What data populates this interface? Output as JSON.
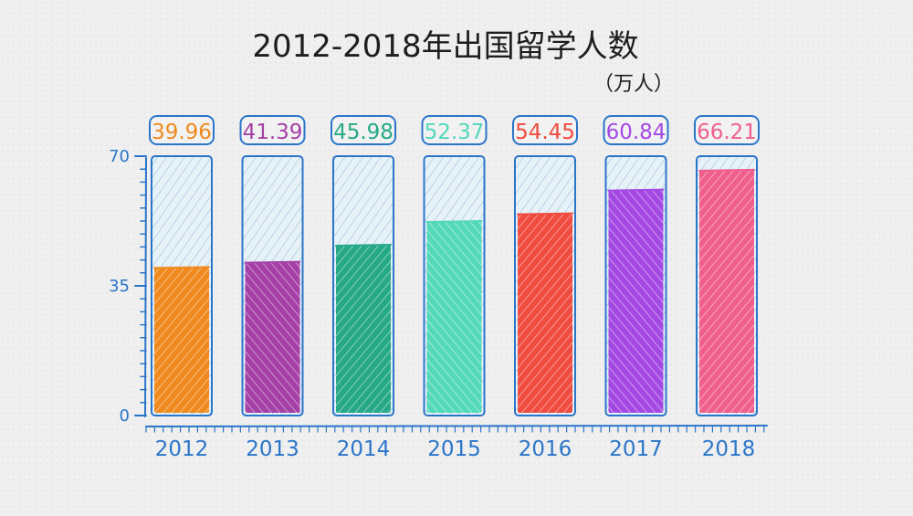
{
  "chart_data": {
    "type": "bar",
    "title": "2012-2018年出国留学人数",
    "unit_label": "（万人）",
    "categories": [
      "2012",
      "2013",
      "2014",
      "2015",
      "2016",
      "2017",
      "2018"
    ],
    "values": [
      39.96,
      41.39,
      45.98,
      52.37,
      54.45,
      60.84,
      66.21
    ],
    "value_labels": [
      "39.96",
      "41.39",
      "45.98",
      "52.37",
      "54.45",
      "60.84",
      "66.21"
    ],
    "ylim": [
      0,
      70
    ],
    "yticks": [
      {
        "value": 0,
        "label": "0"
      },
      {
        "value": 35,
        "label": "35"
      },
      {
        "value": 70,
        "label": "70"
      }
    ],
    "bar_colors": [
      "#f08a1e",
      "#a440a6",
      "#26a986",
      "#53d8ba",
      "#ef4b3f",
      "#a448e3",
      "#f05f8c"
    ],
    "axis_color": "#2b75c9",
    "grid": false,
    "legend": "none"
  }
}
